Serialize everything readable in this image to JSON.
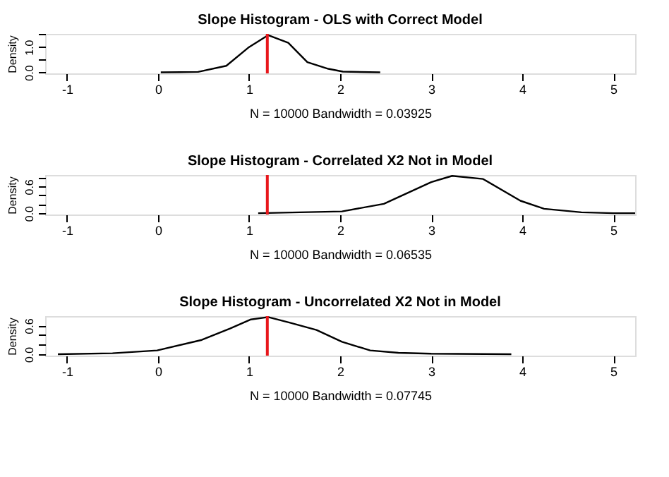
{
  "chart_data": [
    {
      "type": "line",
      "title": "Slope Histogram - OLS with Correct Model",
      "xlabel": "N = 10000   Bandwidth = 0.03925",
      "ylabel": "Density",
      "x": [
        0.03,
        0.44,
        0.75,
        1.0,
        1.21,
        1.43,
        1.64,
        1.87,
        2.03,
        2.44
      ],
      "series": [
        {
          "color": "#000000",
          "values": [
            0.0,
            0.02,
            0.26,
            1.0,
            1.47,
            1.17,
            0.4,
            0.14,
            0.03,
            0.0
          ]
        }
      ],
      "xlim": [
        -1.24,
        5.24
      ],
      "xticks": [
        -1,
        0,
        1,
        2,
        3,
        4,
        5
      ],
      "ylim": [
        -0.04,
        1.52
      ],
      "yticks": [
        {
          "value": 0,
          "label": "0.0"
        },
        {
          "value": 0.5,
          "label": null
        },
        {
          "value": 1.0,
          "label": "1.0"
        },
        {
          "value": 1.5,
          "label": null
        }
      ],
      "ref_lines": [
        {
          "axis": "x",
          "value": 1.2,
          "color": "#e8161b"
        }
      ],
      "grid": false
    },
    {
      "type": "line",
      "title": "Slope Histogram - Correlated X2 Not in Model",
      "xlabel": "N = 10000   Bandwidth = 0.06535",
      "ylabel": "Density",
      "x": [
        1.1,
        2.02,
        2.48,
        3.0,
        3.23,
        3.57,
        3.98,
        4.24,
        4.65,
        5.0,
        5.24
      ],
      "series": [
        {
          "color": "#000000",
          "values": [
            0.0,
            0.04,
            0.21,
            0.7,
            0.84,
            0.77,
            0.28,
            0.1,
            0.02,
            0.0,
            0.0
          ]
        }
      ],
      "xlim": [
        -1.24,
        5.24
      ],
      "xticks": [
        -1,
        0,
        1,
        2,
        3,
        4,
        5
      ],
      "ylim": [
        -0.03,
        0.86
      ],
      "yticks": [
        {
          "value": 0,
          "label": "0.0"
        },
        {
          "value": 0.2,
          "label": null
        },
        {
          "value": 0.4,
          "label": null
        },
        {
          "value": 0.6,
          "label": "0.6"
        },
        {
          "value": 0.8,
          "label": null
        }
      ],
      "ref_lines": [
        {
          "axis": "x",
          "value": 1.2,
          "color": "#e8161b"
        }
      ],
      "grid": false
    },
    {
      "type": "line",
      "title": "Slope Histogram - Uncorrelated X2 Not in Model",
      "xlabel": "N = 10000   Bandwidth = 0.07745",
      "ylabel": "Density",
      "x": [
        -1.1,
        -0.5,
        -0.01,
        0.48,
        0.79,
        1.02,
        1.21,
        1.45,
        1.74,
        2.02,
        2.33,
        2.64,
        3.0,
        3.88
      ],
      "series": [
        {
          "color": "#000000",
          "values": [
            0.0,
            0.02,
            0.08,
            0.3,
            0.54,
            0.73,
            0.78,
            0.66,
            0.51,
            0.26,
            0.08,
            0.03,
            0.01,
            0.0
          ]
        }
      ],
      "xlim": [
        -1.24,
        5.24
      ],
      "xticks": [
        -1,
        0,
        1,
        2,
        3,
        4,
        5
      ],
      "ylim": [
        -0.03,
        0.8
      ],
      "yticks": [
        {
          "value": 0,
          "label": "0.0"
        },
        {
          "value": 0.2,
          "label": null
        },
        {
          "value": 0.4,
          "label": null
        },
        {
          "value": 0.6,
          "label": "0.6"
        }
      ],
      "ref_lines": [
        {
          "axis": "x",
          "value": 1.2,
          "color": "#e8161b"
        }
      ],
      "grid": false
    }
  ]
}
